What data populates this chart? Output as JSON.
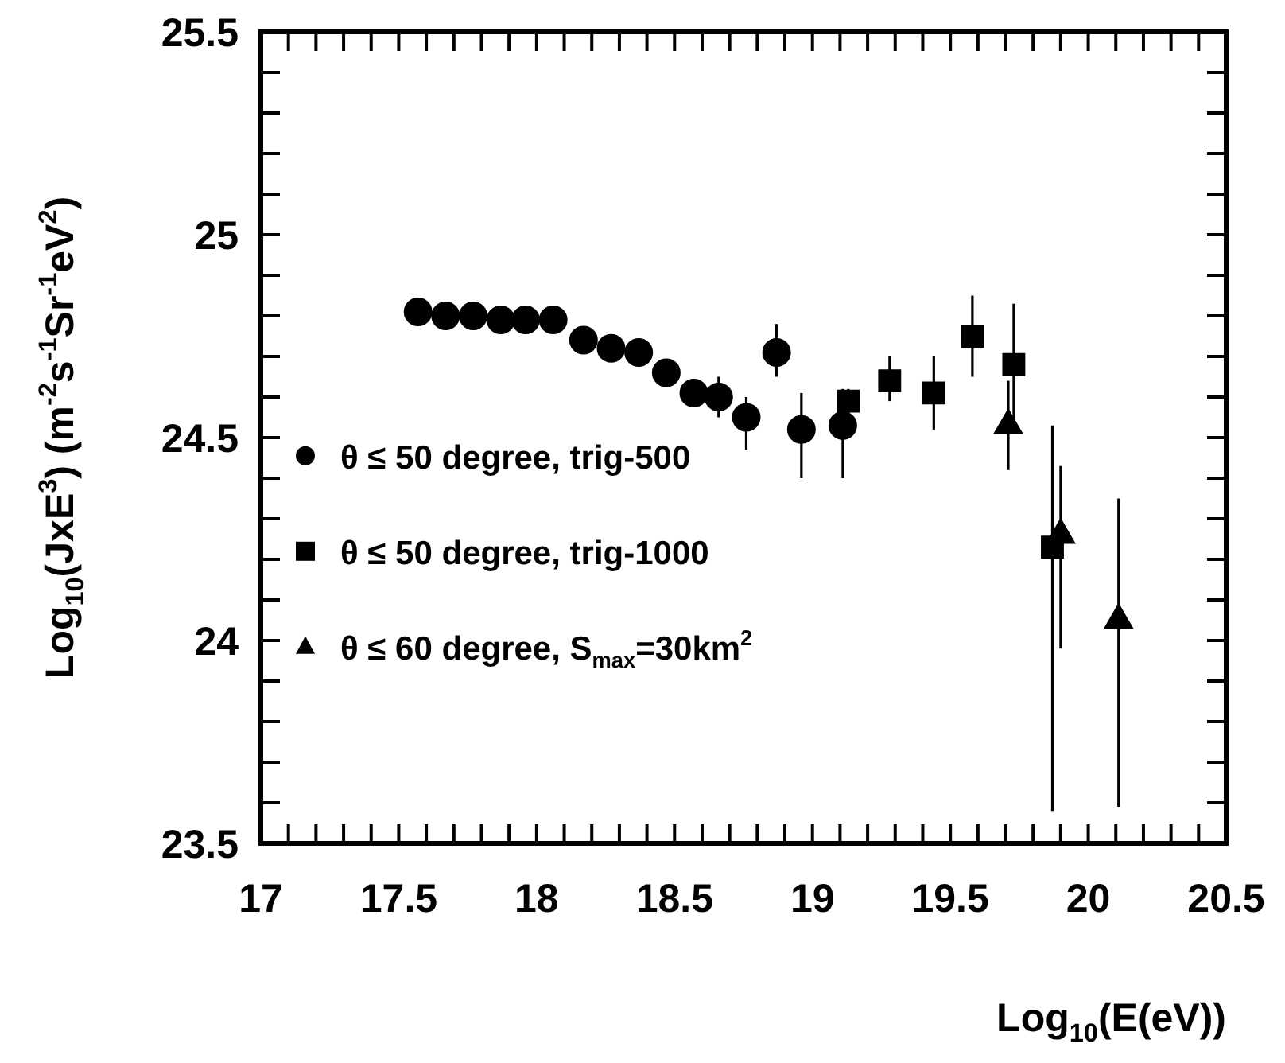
{
  "chart_data": {
    "type": "scatter",
    "xlabel": "Log$_{10}$(E(eV))",
    "ylabel": "Log$_{10}$(JxE$^{3}$) (m$^{-2}$s$^{-1}$Sr$^{-1}$eV$^{2}$)",
    "xlim": [
      17,
      20.5
    ],
    "ylim": [
      23.5,
      25.5
    ],
    "xticks": [
      17,
      {
        "value": 17.1,
        "label": null
      },
      {
        "value": 17.2,
        "label": null
      },
      {
        "value": 17.3,
        "label": null
      },
      {
        "value": 17.4,
        "label": null
      },
      17.5,
      {
        "value": 17.6,
        "label": null
      },
      {
        "value": 17.7,
        "label": null
      },
      {
        "value": 17.8,
        "label": null
      },
      {
        "value": 17.9,
        "label": null
      },
      18,
      {
        "value": 18.1,
        "label": null
      },
      {
        "value": 18.2,
        "label": null
      },
      {
        "value": 18.3,
        "label": null
      },
      {
        "value": 18.4,
        "label": null
      },
      18.5,
      {
        "value": 18.6,
        "label": null
      },
      {
        "value": 18.7,
        "label": null
      },
      {
        "value": 18.8,
        "label": null
      },
      {
        "value": 18.9,
        "label": null
      },
      19,
      {
        "value": 19.1,
        "label": null
      },
      {
        "value": 19.2,
        "label": null
      },
      {
        "value": 19.3,
        "label": null
      },
      {
        "value": 19.4,
        "label": null
      },
      19.5,
      {
        "value": 19.6,
        "label": null
      },
      {
        "value": 19.7,
        "label": null
      },
      {
        "value": 19.8,
        "label": null
      },
      {
        "value": 19.9,
        "label": null
      },
      20,
      {
        "value": 20.1,
        "label": null
      },
      {
        "value": 20.2,
        "label": null
      },
      {
        "value": 20.3,
        "label": null
      },
      {
        "value": 20.4,
        "label": null
      },
      20.5
    ],
    "yticks": [
      23.5,
      {
        "value": 23.6,
        "label": null
      },
      {
        "value": 23.7,
        "label": null
      },
      {
        "value": 23.8,
        "label": null
      },
      {
        "value": 23.9,
        "label": null
      },
      24,
      {
        "value": 24.1,
        "label": null
      },
      {
        "value": 24.2,
        "label": null
      },
      {
        "value": 24.3,
        "label": null
      },
      {
        "value": 24.4,
        "label": null
      },
      24.5,
      {
        "value": 24.6,
        "label": null
      },
      {
        "value": 24.7,
        "label": null
      },
      {
        "value": 24.8,
        "label": null
      },
      {
        "value": 24.9,
        "label": null
      },
      25,
      {
        "value": 25.1,
        "label": null
      },
      {
        "value": 25.2,
        "label": null
      },
      {
        "value": 25.3,
        "label": null
      },
      {
        "value": 25.4,
        "label": null
      },
      25.5
    ],
    "legend": "left",
    "grid": false,
    "series": [
      {
        "name": "θ ≤ 50 degree, trig-500",
        "color": "#000000",
        "marker": "circle",
        "x": [
          17.57,
          17.67,
          17.77,
          17.87,
          17.96,
          18.06,
          18.17,
          18.27,
          18.37,
          18.47,
          18.57,
          18.66,
          18.76,
          18.87,
          18.96,
          19.11
        ],
        "values": [
          24.81,
          24.8,
          24.8,
          24.79,
          24.79,
          24.79,
          24.74,
          24.72,
          24.71,
          24.66,
          24.61,
          24.6,
          24.55,
          24.71,
          24.52,
          24.53
        ],
        "errors": [
          null,
          null,
          null,
          null,
          null,
          null,
          null,
          null,
          null,
          null,
          null,
          [
            24.55,
            24.65
          ],
          [
            24.47,
            24.6
          ],
          [
            24.65,
            24.78
          ],
          [
            24.4,
            24.61
          ],
          [
            24.4,
            24.62
          ]
        ]
      },
      {
        "name": "θ ≤ 50 degree, trig-1000",
        "color": "#000000",
        "marker": "square",
        "x": [
          19.13,
          19.28,
          19.44,
          19.58,
          19.73,
          19.87
        ],
        "values": [
          24.59,
          24.64,
          24.61,
          24.75,
          24.68,
          24.23
        ],
        "errors": [
          [
            24.56,
            24.62
          ],
          [
            24.59,
            24.7
          ],
          [
            24.52,
            24.7
          ],
          [
            24.65,
            24.85
          ],
          [
            24.54,
            24.83
          ],
          [
            23.58,
            24.53
          ]
        ]
      },
      {
        "name": "θ ≤ 60 degree, S$_{max}$=30km$^{2}$",
        "color": "#000000",
        "marker": "triangle",
        "x": [
          19.71,
          19.9,
          20.11
        ],
        "values": [
          24.53,
          24.26,
          24.05
        ],
        "errors": [
          [
            24.42,
            24.64
          ],
          [
            23.98,
            24.43
          ],
          [
            23.59,
            24.35
          ]
        ]
      }
    ]
  }
}
